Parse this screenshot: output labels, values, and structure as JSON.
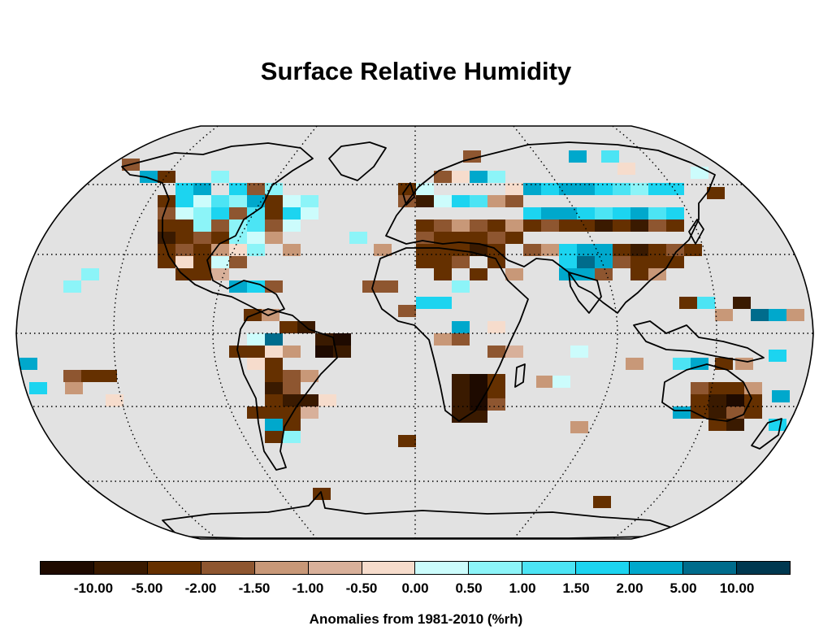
{
  "title": "Surface Relative Humidity",
  "colorbar": {
    "caption": "Anomalies from 1981-2010 (%rh)",
    "ticks": [
      "-10.00",
      "-5.00",
      "-2.00",
      "-1.50",
      "-1.00",
      "-0.50",
      "0.00",
      "0.50",
      "1.00",
      "1.50",
      "2.00",
      "5.00",
      "10.00"
    ],
    "colors": [
      "#1e0a00",
      "#3a1a00",
      "#653000",
      "#8e5630",
      "#c89878",
      "#d8b09a",
      "#f6dccc",
      "#ccfcfc",
      "#8cf4f8",
      "#4ce4f4",
      "#1cd4f0",
      "#00a8cc",
      "#006c8c",
      "#003850"
    ]
  },
  "map": {
    "projection": "Robinson",
    "background": "#e2e2e2",
    "coastline_color": "#000000",
    "graticule_color": "#000000",
    "graticule_style": "dotted"
  }
}
